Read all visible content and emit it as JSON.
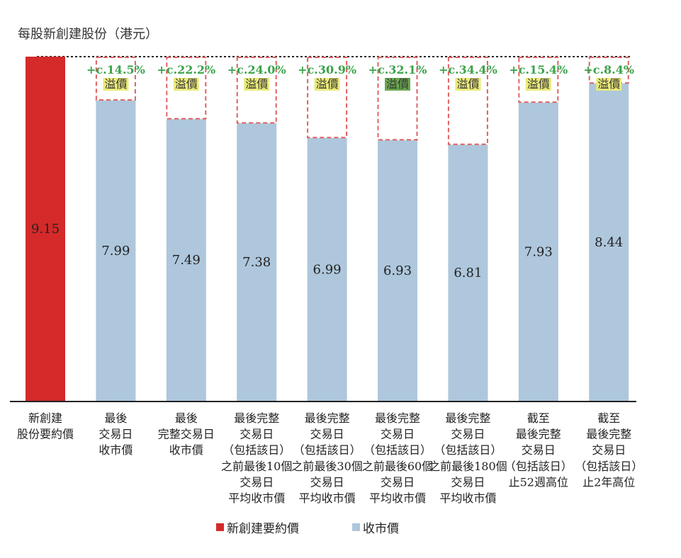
{
  "chart_data": {
    "type": "bar",
    "title": "每股新創建股份（港元）",
    "ylim": [
      0,
      9.15
    ],
    "grid": false,
    "legend_position": "bottom",
    "colors": {
      "offer": "#d42a2a",
      "close": "#aec7dc",
      "premium_border": "#e06060",
      "premium_text": "#3aa34a",
      "label_bg": "#eaea7a",
      "label_bg_highlight": "#6aa84f",
      "reference_line": "#222222"
    },
    "categories": [
      [
        "新創建",
        "股份要約價"
      ],
      [
        "最後",
        "交易日",
        "收市價"
      ],
      [
        "最後",
        "完整交易日",
        "收市價"
      ],
      [
        "最後完整",
        "交易日",
        "（包括該日）",
        "之前最後10個",
        "交易日",
        "平均收市價"
      ],
      [
        "最後完整",
        "交易日",
        "（包括該日）",
        "之前最後30個",
        "交易日",
        "平均收市價"
      ],
      [
        "最後完整",
        "交易日",
        "（包括該日）",
        "之前最後60個",
        "交易日",
        "平均收市價"
      ],
      [
        "最後完整",
        "交易日",
        "（包括該日）",
        "之前最後180個",
        "交易日",
        "平均收市價"
      ],
      [
        "截至",
        "最後完整",
        "交易日",
        "（包括該日）",
        "止52週高位"
      ],
      [
        "截至",
        "最後完整",
        "交易日",
        "（包括該日）",
        "止2年高位"
      ]
    ],
    "series": [
      {
        "name": "新創建要約價",
        "values": [
          9.15,
          null,
          null,
          null,
          null,
          null,
          null,
          null,
          null
        ]
      },
      {
        "name": "收市價",
        "values": [
          null,
          7.99,
          7.49,
          7.38,
          6.99,
          6.93,
          6.81,
          7.93,
          8.44
        ]
      }
    ],
    "value_labels": [
      "9.15",
      "7.99",
      "7.49",
      "7.38",
      "6.99",
      "6.93",
      "6.81",
      "7.93",
      "8.44"
    ],
    "premiums": [
      null,
      "+c.14.5%",
      "+c.22.2%",
      "+c.24.0%",
      "+c.30.9%",
      "+c.32.1%",
      "+c.34.4%",
      "+c.15.4%",
      "+c.8.4%"
    ],
    "premium_label": "溢價",
    "premium_highlight_index": 5
  }
}
